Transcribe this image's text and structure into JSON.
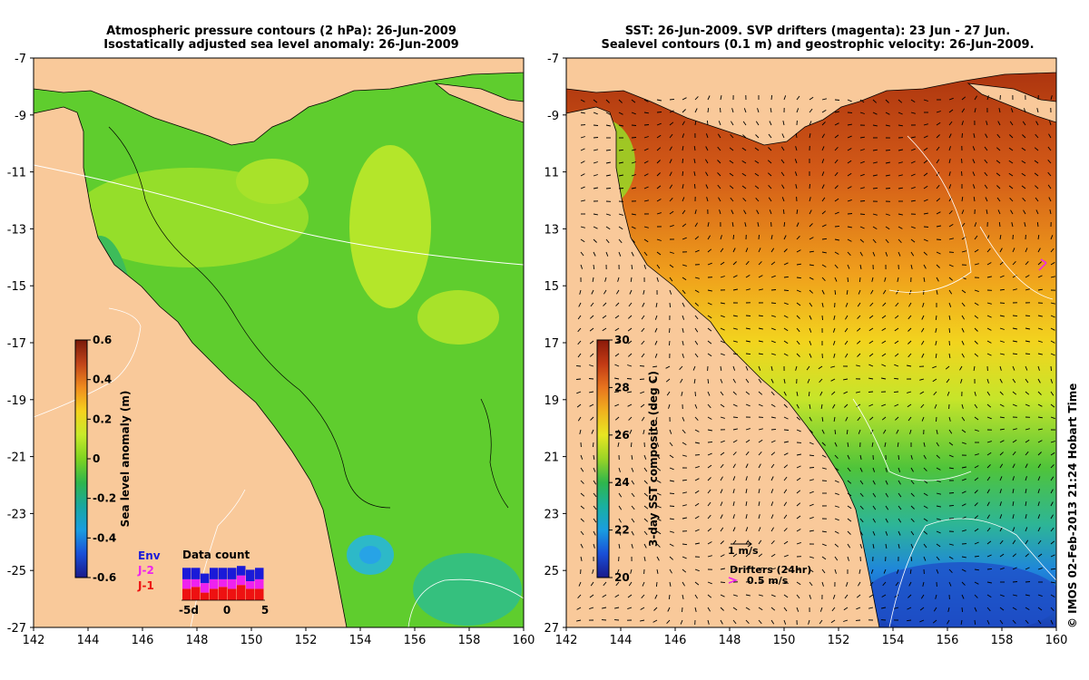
{
  "left_panel": {
    "title_line1": "Atmospheric pressure contours (2 hPa): 26-Jun-2009",
    "title_line2": "Isostatically adjusted sea level anomaly: 26-Jun-2009",
    "colorbar_label": "Sea level anomaly (m)",
    "colorbar_ticks": [
      "0.6",
      "0.4",
      "0.2",
      "0",
      "-0.2",
      "-0.4",
      "-0.6"
    ],
    "colorbar_colors": [
      "#7a1a0a",
      "#c2451a",
      "#f08c1e",
      "#f5d21e",
      "#c8ea2a",
      "#7ed321",
      "#2fb64c",
      "#1aa7a0",
      "#1a9de0",
      "#1a4fd8",
      "#1a1a8a"
    ],
    "data_count": {
      "title": "Data count",
      "legend": [
        {
          "label": "Env",
          "color": "#1a1ad8"
        },
        {
          "label": "J-2",
          "color": "#ee22ee"
        },
        {
          "label": "J-1",
          "color": "#ee1111"
        }
      ],
      "xticks": [
        "-5d",
        "0",
        "5"
      ],
      "bars": [
        [
          0.3,
          0.25,
          0.3
        ],
        [
          0.3,
          0.2,
          0.35
        ],
        [
          0.25,
          0.25,
          0.2
        ],
        [
          0.3,
          0.25,
          0.3
        ],
        [
          0.3,
          0.2,
          0.35
        ],
        [
          0.3,
          0.25,
          0.3
        ],
        [
          0.25,
          0.25,
          0.4
        ],
        [
          0.3,
          0.2,
          0.3
        ],
        [
          0.3,
          0.25,
          0.3
        ]
      ]
    }
  },
  "right_panel": {
    "title_line1": "SST: 26-Jun-2009. SVP drifters (magenta): 23 Jun - 27 Jun.",
    "title_line2": "Sealevel contours (0.1 m) and geostrophic velocity: 26-Jun-2009.",
    "colorbar_label": "3-day SST composite (deg C)",
    "colorbar_ticks": [
      "30",
      "28",
      "26",
      "24",
      "22",
      "20"
    ],
    "colorbar_colors": [
      "#8a1a0a",
      "#c23a14",
      "#e8741e",
      "#f0b21e",
      "#e8e622",
      "#9ad426",
      "#2fb64c",
      "#1ab0a0",
      "#1a9de0",
      "#1a4fd8",
      "#1a1a8a"
    ],
    "velocity_key": "1 m/s",
    "drifters_label": "Drifters (24hr)",
    "drifters_key": "0.5 m/s"
  },
  "map": {
    "lon_ticks": [
      "142",
      "144",
      "146",
      "148",
      "150",
      "152",
      "154",
      "156",
      "158",
      "160"
    ],
    "lat_ticks": [
      "-7",
      "-9",
      "-11",
      "-13",
      "-15",
      "-17",
      "-19",
      "-21",
      "-23",
      "-25",
      "-27"
    ],
    "land_color": "#f9c99a"
  },
  "credit": "© IMOS 02-Feb-2013 21:24 Hobart Time"
}
